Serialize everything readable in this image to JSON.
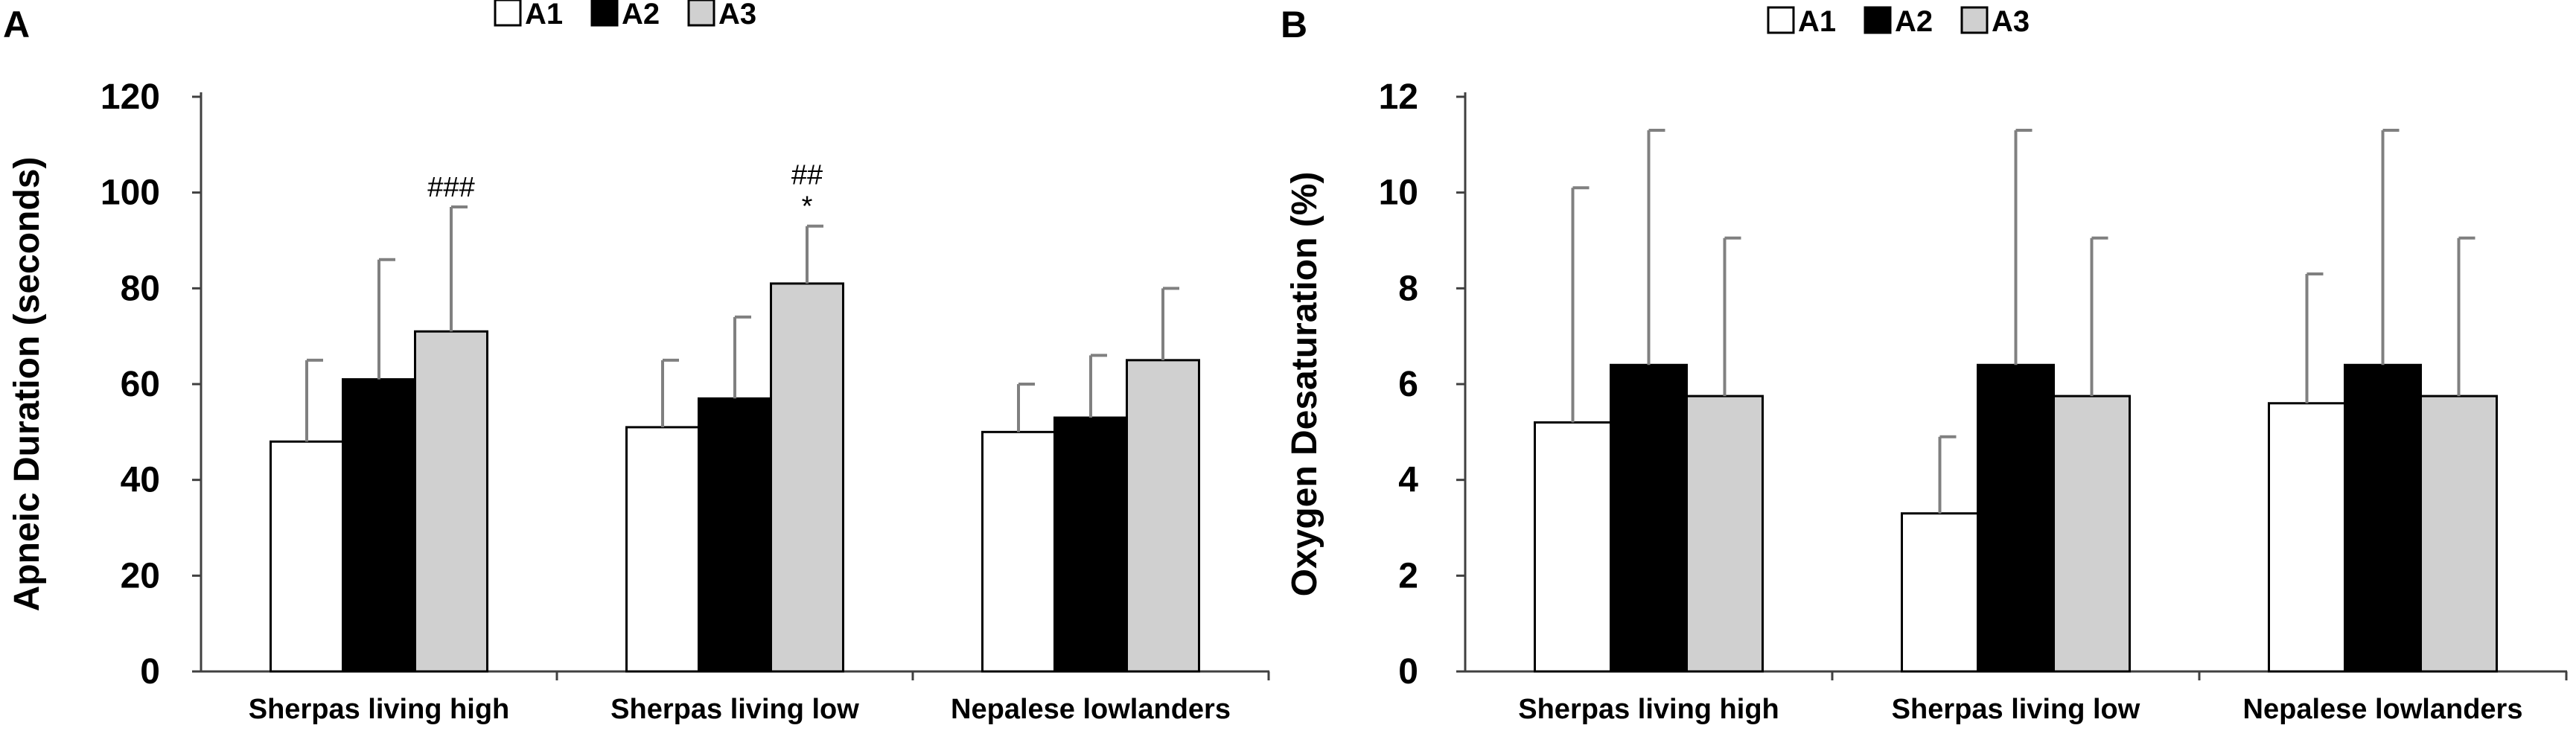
{
  "legend": [
    "A1",
    "A2",
    "A3"
  ],
  "colors": {
    "A1": "#ffffff",
    "A2": "#000000",
    "A3": "#d0d0d0",
    "bar_stroke": "#000000",
    "errorbar": "#808080",
    "axis": "#404040"
  },
  "chart_data": [
    {
      "panel": "A",
      "type": "bar",
      "categories": [
        "Sherpas living high",
        "Sherpas living low",
        "Nepalese lowlanders"
      ],
      "series": [
        {
          "name": "A1",
          "values": [
            48,
            51,
            50
          ],
          "errors": [
            17,
            14,
            10
          ]
        },
        {
          "name": "A2",
          "values": [
            61,
            57,
            53
          ],
          "errors": [
            25,
            17,
            13
          ]
        },
        {
          "name": "A3",
          "values": [
            71,
            81,
            65
          ],
          "errors": [
            26,
            12,
            15
          ]
        }
      ],
      "annotations": [
        {
          "category": 0,
          "series": "A3",
          "lines": [
            "###"
          ]
        },
        {
          "category": 1,
          "series": "A3",
          "lines": [
            "##",
            "*"
          ]
        }
      ],
      "ylabel": "Apneic Duration (seconds)",
      "xlabel": "",
      "ylim": [
        0,
        120
      ],
      "yticks": [
        0,
        20,
        40,
        60,
        80,
        100,
        120
      ],
      "grid": false,
      "legend_position": "top-center"
    },
    {
      "panel": "B",
      "type": "bar",
      "categories": [
        "Sherpas living high",
        "Sherpas living low",
        "Nepalese lowlanders"
      ],
      "series": [
        {
          "name": "A1",
          "values": [
            5.2,
            3.3,
            5.6
          ],
          "errors": [
            4.9,
            1.6,
            2.7
          ]
        },
        {
          "name": "A2",
          "values": [
            6.4,
            6.4,
            6.4
          ],
          "errors": [
            4.9,
            4.9,
            4.9
          ]
        },
        {
          "name": "A3",
          "values": [
            5.75,
            5.75,
            5.75
          ],
          "errors": [
            3.3,
            3.3,
            3.3
          ]
        }
      ],
      "annotations": [],
      "ylabel": "Oxygen Desaturation (%)",
      "xlabel": "",
      "ylim": [
        0,
        12
      ],
      "yticks": [
        0,
        2,
        4,
        6,
        8,
        10,
        12
      ],
      "grid": false,
      "legend_position": "top-center"
    }
  ]
}
